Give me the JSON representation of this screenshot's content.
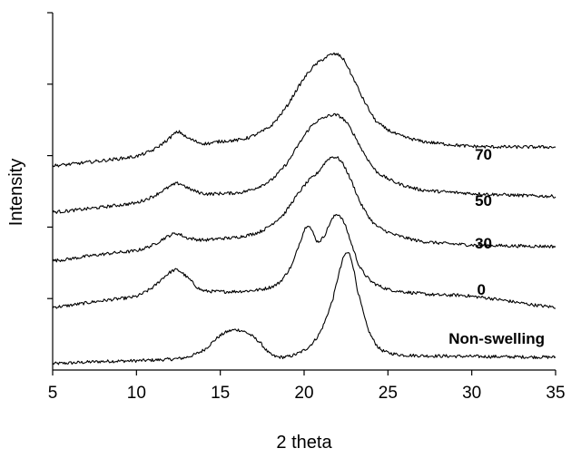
{
  "chart_data": {
    "type": "line",
    "title": "",
    "xlabel": "2 theta",
    "ylabel": "Intensity",
    "xlim": [
      5,
      35
    ],
    "ylim": [
      0,
      5
    ],
    "xticks": [
      5,
      10,
      15,
      20,
      25,
      30,
      35
    ],
    "yticks_labeled": false,
    "grid": false,
    "legend": "none",
    "series": [
      {
        "name": "Non-swelling",
        "x": [
          5,
          8,
          10,
          12,
          13,
          14,
          15,
          15.8,
          16.5,
          17.3,
          18,
          18.7,
          19.5,
          20.3,
          21,
          21.7,
          22.2,
          22.5,
          22.8,
          23.2,
          23.8,
          24.5,
          25.5,
          27,
          30,
          35
        ],
        "values": [
          0.09,
          0.12,
          0.13,
          0.15,
          0.18,
          0.28,
          0.48,
          0.56,
          0.53,
          0.4,
          0.22,
          0.18,
          0.22,
          0.33,
          0.55,
          0.98,
          1.45,
          1.63,
          1.56,
          1.1,
          0.58,
          0.3,
          0.22,
          0.2,
          0.19,
          0.18
        ]
      },
      {
        "name": "0",
        "x": [
          5,
          8,
          10,
          11,
          11.8,
          12.4,
          13,
          13.8,
          14.5,
          16,
          17.5,
          18.5,
          19.3,
          19.8,
          20.2,
          20.5,
          20.8,
          21.2,
          21.6,
          22,
          22.4,
          22.8,
          23.3,
          24,
          25,
          26.5,
          28,
          30,
          35
        ],
        "values": [
          0.88,
          0.97,
          1.03,
          1.16,
          1.33,
          1.4,
          1.3,
          1.13,
          1.1,
          1.1,
          1.13,
          1.22,
          1.48,
          1.82,
          2.03,
          1.93,
          1.8,
          1.88,
          2.08,
          2.18,
          2.05,
          1.78,
          1.45,
          1.24,
          1.13,
          1.08,
          1.05,
          1.03,
          0.88
        ]
      },
      {
        "name": "30",
        "x": [
          5,
          8,
          10,
          11,
          11.8,
          12.4,
          13,
          14,
          15,
          16,
          17.5,
          18.8,
          19.5,
          20.2,
          20.8,
          21.4,
          21.8,
          22.2,
          22.7,
          23.4,
          24.2,
          25.3,
          27,
          30,
          35
        ],
        "values": [
          1.53,
          1.62,
          1.67,
          1.75,
          1.86,
          1.91,
          1.85,
          1.82,
          1.84,
          1.86,
          1.95,
          2.18,
          2.42,
          2.63,
          2.76,
          2.94,
          2.98,
          2.92,
          2.7,
          2.32,
          2.04,
          1.9,
          1.8,
          1.75,
          1.73
        ]
      },
      {
        "name": "50",
        "x": [
          5,
          8,
          10,
          11,
          11.8,
          12.5,
          13.2,
          14,
          15,
          16.5,
          18,
          19,
          19.8,
          20.5,
          21.2,
          21.8,
          22.3,
          22.8,
          23.5,
          24.3,
          25.5,
          27,
          30,
          35
        ],
        "values": [
          2.21,
          2.28,
          2.34,
          2.43,
          2.54,
          2.61,
          2.53,
          2.47,
          2.47,
          2.5,
          2.65,
          2.9,
          3.2,
          3.43,
          3.53,
          3.57,
          3.52,
          3.36,
          3.06,
          2.78,
          2.62,
          2.52,
          2.47,
          2.43
        ]
      },
      {
        "name": "70",
        "x": [
          5,
          8,
          10,
          11,
          11.8,
          12.5,
          13,
          14,
          15,
          16.5,
          18,
          19,
          19.8,
          20.5,
          21.2,
          21.8,
          22.3,
          22.8,
          23.5,
          24.3,
          25.5,
          27,
          30,
          35
        ],
        "values": [
          2.86,
          2.93,
          2.99,
          3.08,
          3.21,
          3.33,
          3.25,
          3.17,
          3.2,
          3.24,
          3.41,
          3.7,
          4.01,
          4.23,
          4.36,
          4.42,
          4.36,
          4.14,
          3.8,
          3.48,
          3.3,
          3.2,
          3.13,
          3.12
        ]
      }
    ],
    "annotations": [
      "70",
      "50",
      "30",
      "0",
      "Non-swelling"
    ]
  }
}
